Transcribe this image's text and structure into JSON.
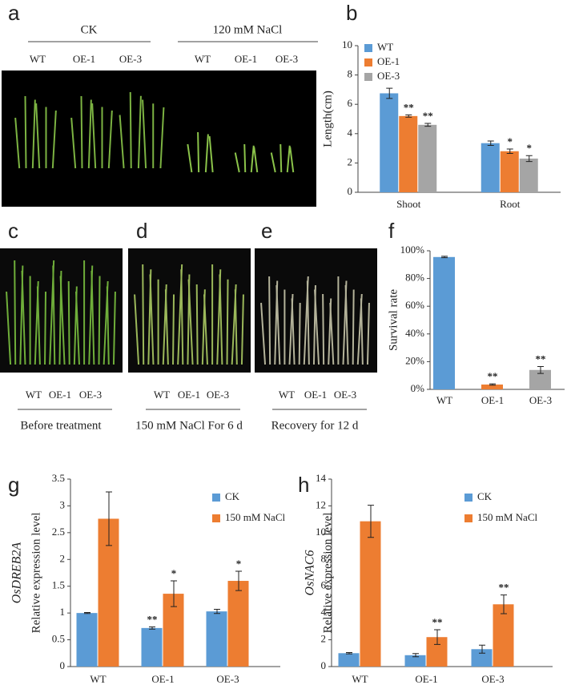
{
  "panel_labels": [
    "a",
    "b",
    "c",
    "d",
    "e",
    "f",
    "g",
    "h"
  ],
  "photo_a": {
    "groups": [
      "CK",
      "120 mM NaCl"
    ],
    "lanes": [
      [
        "WT",
        "OE-1",
        "OE-3"
      ],
      [
        "WT",
        "OE-1",
        "OE-3"
      ]
    ]
  },
  "photos": [
    {
      "lanes": [
        "WT",
        "OE-1",
        "OE-3"
      ],
      "caption": "Before treatment"
    },
    {
      "lanes": [
        "WT",
        "OE-1",
        "OE-3"
      ],
      "caption": "150 mM NaCl For 6 d"
    },
    {
      "lanes": [
        "WT",
        "OE-1",
        "OE-3"
      ],
      "caption": "Recovery for 12 d"
    }
  ],
  "chart_data": [
    {
      "type": "bar",
      "ylabel": "Length(cm)",
      "categories": [
        "Shoot",
        "Root"
      ],
      "series": [
        {
          "name": "WT",
          "color": "#5b9bd5",
          "values": [
            6.75,
            3.35
          ],
          "errors": [
            0.35,
            0.15
          ]
        },
        {
          "name": "OE-1",
          "color": "#ed7d31",
          "values": [
            5.2,
            2.8
          ],
          "errors": [
            0.08,
            0.15
          ],
          "annotations": [
            "**",
            "*"
          ]
        },
        {
          "name": "OE-3",
          "color": "#a5a5a5",
          "values": [
            4.6,
            2.3
          ],
          "errors": [
            0.1,
            0.2
          ],
          "annotations": [
            "**",
            "*"
          ]
        }
      ],
      "ylim": [
        0,
        10
      ],
      "yticks": [
        0,
        2,
        4,
        6,
        8,
        10
      ],
      "legend": "upper left"
    },
    {
      "type": "bar",
      "ylabel": "Survival rate",
      "categories": [
        "WT",
        "OE-1",
        "OE-3"
      ],
      "values": [
        95.5,
        3.5,
        14
      ],
      "errors": [
        0.5,
        0.5,
        2.5
      ],
      "annotations": [
        null,
        "**",
        "**"
      ],
      "colors": [
        "#5b9bd5",
        "#ed7d31",
        "#a5a5a5"
      ],
      "ylim": [
        0,
        100
      ],
      "yticks": [
        {
          "value": 0,
          "label": "0%"
        },
        {
          "value": 20,
          "label": "20%"
        },
        {
          "value": 40,
          "label": "40%"
        },
        {
          "value": 60,
          "label": "60%"
        },
        {
          "value": 80,
          "label": "80%"
        },
        {
          "value": 100,
          "label": "100%"
        }
      ]
    },
    {
      "type": "bar",
      "gene": "OsDREB2A",
      "ylabel": "Relative expression level",
      "categories": [
        "WT",
        "OE-1",
        "OE-3"
      ],
      "series": [
        {
          "name": "CK",
          "color": "#5b9bd5",
          "values": [
            1.0,
            0.72,
            1.03
          ],
          "errors": [
            0.01,
            0.02,
            0.04
          ],
          "annotations": [
            null,
            "**",
            null
          ]
        },
        {
          "name": "150 mM NaCl",
          "color": "#ed7d31",
          "values": [
            2.76,
            1.36,
            1.6
          ],
          "errors": [
            0.5,
            0.24,
            0.18
          ],
          "annotations": [
            null,
            "*",
            "*"
          ]
        }
      ],
      "ylim": [
        0,
        3.5
      ],
      "yticks": [
        0,
        0.5,
        1,
        1.5,
        2,
        2.5,
        3,
        3.5
      ],
      "legend": "upper right"
    },
    {
      "type": "bar",
      "gene": "OsNAC6",
      "ylabel": "Relative expression level",
      "categories": [
        "WT",
        "OE-1",
        "OE-3"
      ],
      "series": [
        {
          "name": "CK",
          "color": "#5b9bd5",
          "values": [
            1.0,
            0.85,
            1.3
          ],
          "errors": [
            0.05,
            0.12,
            0.3
          ]
        },
        {
          "name": "150 mM NaCl",
          "color": "#ed7d31",
          "values": [
            10.85,
            2.2,
            4.65
          ],
          "errors": [
            1.2,
            0.55,
            0.7
          ],
          "annotations": [
            null,
            "**",
            "**"
          ]
        }
      ],
      "ylim": [
        0,
        14
      ],
      "yticks": [
        0,
        2,
        4,
        6,
        8,
        10,
        12,
        14
      ],
      "legend": "upper right"
    }
  ]
}
